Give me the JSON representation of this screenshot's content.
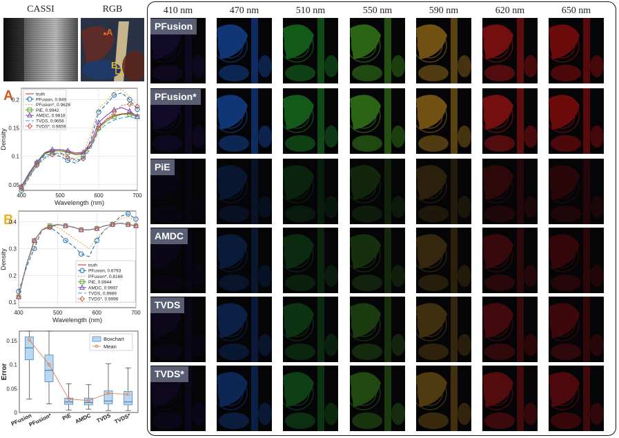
{
  "top_labels": {
    "cassi": "CASSI",
    "rgb": "RGB"
  },
  "wavelengths": [
    "410 nm",
    "470 nm",
    "510 nm",
    "550 nm",
    "590 nm",
    "620 nm",
    "650 nm"
  ],
  "methods": [
    "PFusion",
    "PFusion*",
    "PiE",
    "AMDC",
    "TVDS",
    "TVDS*"
  ],
  "colors": {
    "410": "#3a1a8a",
    "470": "#1a5fd0",
    "510": "#1fa02a",
    "550": "#4cb320",
    "590": "#c8901c",
    "620": "#d01818",
    "650": "#c01010",
    "truth": "#d02020",
    "pfusion": "#1f6fb8",
    "pfusionstar": "#e8a23c",
    "pie": "#5aa02c",
    "amdc": "#7a4fb0",
    "tvds": "#2aa8c8",
    "tvdsstar": "#c8604a",
    "label_A": "#d35a1f",
    "label_B": "#e6b52a"
  },
  "rgb_markers": {
    "a": "A",
    "b": "B"
  },
  "chart_data": [
    {
      "type": "line",
      "panel_label": "A",
      "xlabel": "Wavelength (nm)",
      "ylabel": "Density",
      "xlim": [
        400,
        700
      ],
      "ylim": [
        0.04,
        0.22
      ],
      "xticks": [
        400,
        500,
        600,
        700
      ],
      "yticks": [
        0.05,
        0.1,
        0.15,
        0.2
      ],
      "ytick_labels": [
        "0.05",
        "0.1",
        "0.15",
        "0.2"
      ],
      "x": [
        400,
        420,
        440,
        460,
        480,
        500,
        520,
        540,
        560,
        580,
        600,
        620,
        640,
        660,
        680,
        700
      ],
      "series": [
        {
          "name": "truth",
          "values": [
            0.045,
            0.068,
            0.088,
            0.105,
            0.11,
            0.11,
            0.108,
            0.104,
            0.105,
            0.12,
            0.152,
            0.165,
            0.172,
            0.175,
            0.176,
            0.172
          ]
        },
        {
          "name": "PFusion, 0.949",
          "values": [
            0.04,
            0.062,
            0.085,
            0.102,
            0.104,
            0.1,
            0.093,
            0.088,
            0.097,
            0.13,
            0.178,
            0.192,
            0.208,
            0.212,
            0.2,
            0.183
          ]
        },
        {
          "name": "PFusion*, 0.9628",
          "values": [
            0.044,
            0.07,
            0.09,
            0.107,
            0.112,
            0.108,
            0.1,
            0.095,
            0.106,
            0.14,
            0.185,
            0.197,
            0.215,
            0.218,
            0.205,
            0.19
          ]
        },
        {
          "name": "PiE, 0.9942",
          "values": [
            0.046,
            0.069,
            0.088,
            0.104,
            0.109,
            0.11,
            0.107,
            0.103,
            0.104,
            0.118,
            0.15,
            0.162,
            0.17,
            0.174,
            0.174,
            0.17
          ]
        },
        {
          "name": "AMDC, 0.9818",
          "values": [
            0.047,
            0.071,
            0.09,
            0.106,
            0.112,
            0.112,
            0.11,
            0.106,
            0.107,
            0.125,
            0.16,
            0.172,
            0.182,
            0.186,
            0.18,
            0.17
          ]
        },
        {
          "name": "TVDS, 0.9656",
          "values": [
            0.042,
            0.065,
            0.083,
            0.098,
            0.105,
            0.106,
            0.1,
            0.094,
            0.095,
            0.115,
            0.145,
            0.157,
            0.164,
            0.168,
            0.17,
            0.166
          ]
        },
        {
          "name": "TVDS*, 0.9659",
          "values": [
            0.043,
            0.066,
            0.084,
            0.096,
            0.103,
            0.105,
            0.098,
            0.092,
            0.096,
            0.118,
            0.15,
            0.165,
            0.178,
            0.19,
            0.192,
            0.188
          ]
        }
      ]
    },
    {
      "type": "line",
      "panel_label": "B",
      "xlabel": "Wavelength (nm)",
      "ylabel": "Density",
      "xlim": [
        400,
        700
      ],
      "ylim": [
        0.08,
        0.44
      ],
      "xticks": [
        400,
        500,
        600,
        700
      ],
      "yticks": [
        0.1,
        0.2,
        0.3,
        0.4
      ],
      "ytick_labels": [
        "0.1",
        "0.2",
        "0.3",
        "0.4"
      ],
      "x": [
        400,
        420,
        440,
        460,
        480,
        500,
        520,
        540,
        560,
        580,
        600,
        620,
        640,
        660,
        680,
        700
      ],
      "series": [
        {
          "name": "truth",
          "values": [
            0.12,
            0.24,
            0.33,
            0.37,
            0.38,
            0.39,
            0.385,
            0.38,
            0.37,
            0.37,
            0.375,
            0.385,
            0.39,
            0.395,
            0.39,
            0.385
          ]
        },
        {
          "name": "PFusion, 0.6793",
          "values": [
            0.14,
            0.23,
            0.3,
            0.37,
            0.38,
            0.36,
            0.33,
            0.31,
            0.28,
            0.27,
            0.33,
            0.37,
            0.39,
            0.42,
            0.43,
            0.41
          ]
        },
        {
          "name": "PFusion*, 0.8168",
          "values": [
            0.13,
            0.24,
            0.31,
            0.37,
            0.39,
            0.38,
            0.36,
            0.34,
            0.32,
            0.3,
            0.34,
            0.37,
            0.39,
            0.41,
            0.42,
            0.4
          ]
        },
        {
          "name": "PiE, 0.9944",
          "values": [
            0.12,
            0.24,
            0.33,
            0.37,
            0.385,
            0.39,
            0.385,
            0.38,
            0.37,
            0.37,
            0.375,
            0.385,
            0.39,
            0.395,
            0.39,
            0.385
          ]
        },
        {
          "name": "AMDC, 0.9997",
          "values": [
            0.12,
            0.24,
            0.33,
            0.37,
            0.38,
            0.39,
            0.385,
            0.38,
            0.37,
            0.37,
            0.375,
            0.385,
            0.39,
            0.395,
            0.39,
            0.385
          ]
        },
        {
          "name": "TVDS, 0.9989",
          "values": [
            0.12,
            0.24,
            0.33,
            0.37,
            0.38,
            0.39,
            0.385,
            0.38,
            0.37,
            0.37,
            0.375,
            0.385,
            0.39,
            0.395,
            0.39,
            0.385
          ]
        },
        {
          "name": "TVDS*, 0.9996",
          "values": [
            0.12,
            0.24,
            0.33,
            0.37,
            0.38,
            0.39,
            0.385,
            0.38,
            0.37,
            0.37,
            0.375,
            0.385,
            0.39,
            0.395,
            0.39,
            0.385
          ]
        }
      ]
    },
    {
      "type": "box",
      "ylabel": "Error",
      "ylim": [
        0,
        0.17
      ],
      "yticks": [
        0,
        0.05,
        0.1,
        0.15
      ],
      "ytick_labels": [
        "0",
        "0.05",
        "0.1",
        "0.15"
      ],
      "legend": [
        "Boxchart",
        "Mean"
      ],
      "categories": [
        "PFusion",
        "PFusion*",
        "PiE",
        "AMDC",
        "TVDS",
        "TVDS*"
      ],
      "whisker_low": [
        0.028,
        0.018,
        0.005,
        0.007,
        0.004,
        0.004
      ],
      "q1": [
        0.11,
        0.064,
        0.017,
        0.016,
        0.018,
        0.016
      ],
      "median": [
        0.135,
        0.088,
        0.022,
        0.021,
        0.024,
        0.022
      ],
      "q3": [
        0.158,
        0.12,
        0.03,
        0.03,
        0.045,
        0.044
      ],
      "whisker_high": [
        0.17,
        0.17,
        0.06,
        0.058,
        0.102,
        0.093
      ],
      "mean": [
        0.152,
        0.1,
        0.028,
        0.025,
        0.04,
        0.038
      ]
    }
  ]
}
